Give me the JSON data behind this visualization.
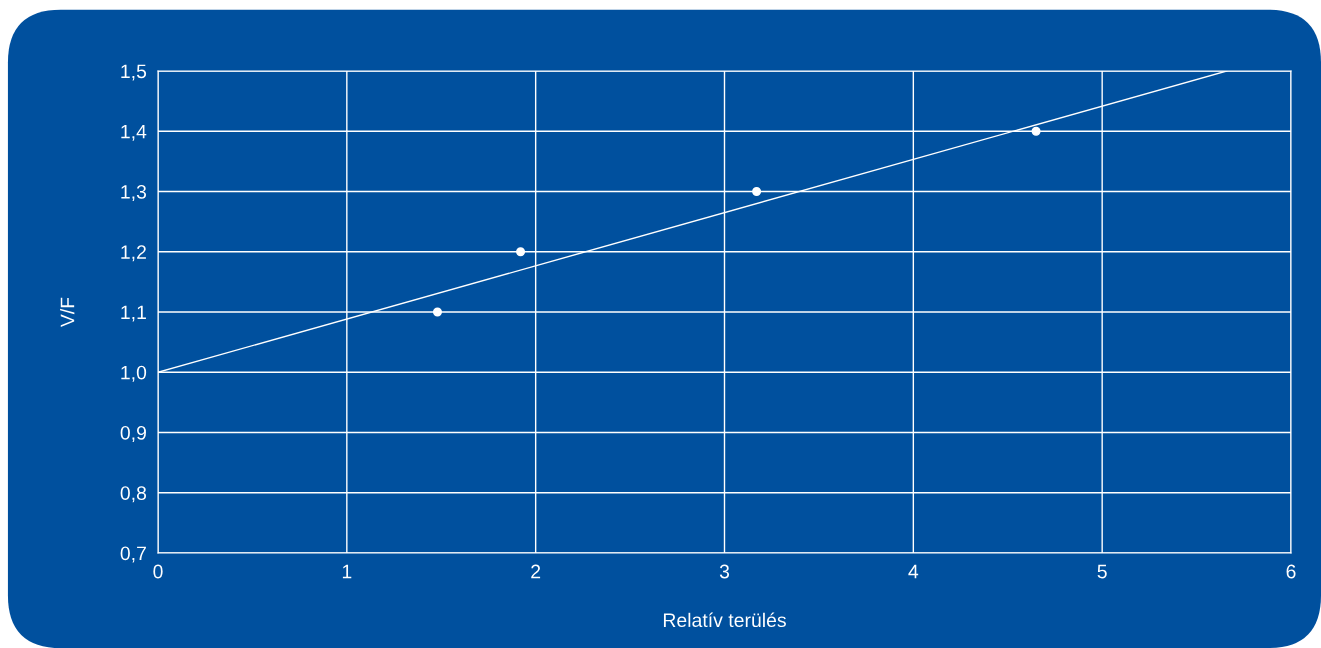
{
  "chart_data": {
    "type": "scatter",
    "xlabel": "Relatív terülés",
    "ylabel": "V/F",
    "series": [
      {
        "marker": "circle",
        "color": "#ffffff",
        "x": [
          1.48,
          1.92,
          3.17,
          4.65
        ],
        "values": [
          1.1,
          1.2,
          1.3,
          1.4
        ]
      },
      {
        "type": "line",
        "color": "#ffffff",
        "x": [
          0,
          5.66
        ],
        "values": [
          1.0,
          1.5
        ]
      }
    ],
    "xlim": [
      0,
      6
    ],
    "ylim": [
      0.7,
      1.5
    ],
    "xticks": [
      0,
      1,
      2,
      3,
      4,
      5,
      6
    ],
    "yticks": [
      {
        "value": 0.7,
        "label": "0,7"
      },
      {
        "value": 0.8,
        "label": "0,8"
      },
      {
        "value": 0.9,
        "label": "0,9"
      },
      {
        "value": 1.0,
        "label": "1,0"
      },
      {
        "value": 1.1,
        "label": "1,1"
      },
      {
        "value": 1.2,
        "label": "1,2"
      },
      {
        "value": 1.3,
        "label": "1,3"
      },
      {
        "value": 1.4,
        "label": "1,4"
      },
      {
        "value": 1.5,
        "label": "1,5"
      }
    ],
    "grid": true,
    "line_style": "solid"
  }
}
